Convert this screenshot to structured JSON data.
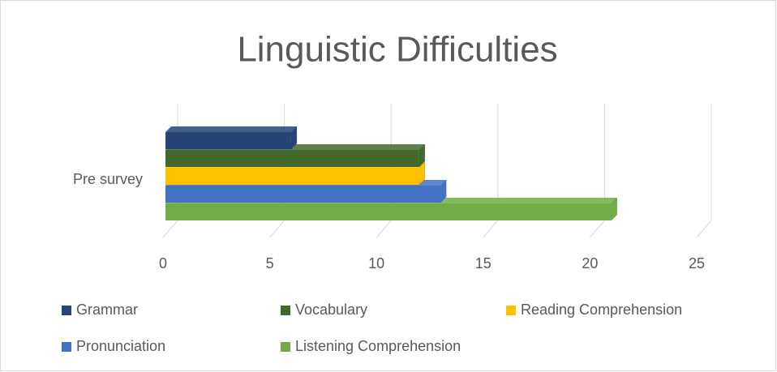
{
  "chart_data": {
    "type": "bar",
    "orientation": "horizontal",
    "title": "Linguistic Difficulties",
    "categories": [
      "Pre survey"
    ],
    "series": [
      {
        "name": "Grammar",
        "color": "#264478",
        "values": [
          6
        ]
      },
      {
        "name": "Vocabulary",
        "color": "#43682b",
        "values": [
          12
        ]
      },
      {
        "name": "Reading Comprehension",
        "color": "#ffc000",
        "values": [
          12
        ]
      },
      {
        "name": "Pronunciation",
        "color": "#4472c4",
        "values": [
          13
        ]
      },
      {
        "name": "Listening Comprehension",
        "color": "#70ad47",
        "values": [
          21
        ]
      }
    ],
    "xlim": [
      0,
      25
    ],
    "xticks": [
      0,
      5,
      10,
      15,
      20,
      25
    ],
    "grid": true,
    "legend": "bottom"
  }
}
